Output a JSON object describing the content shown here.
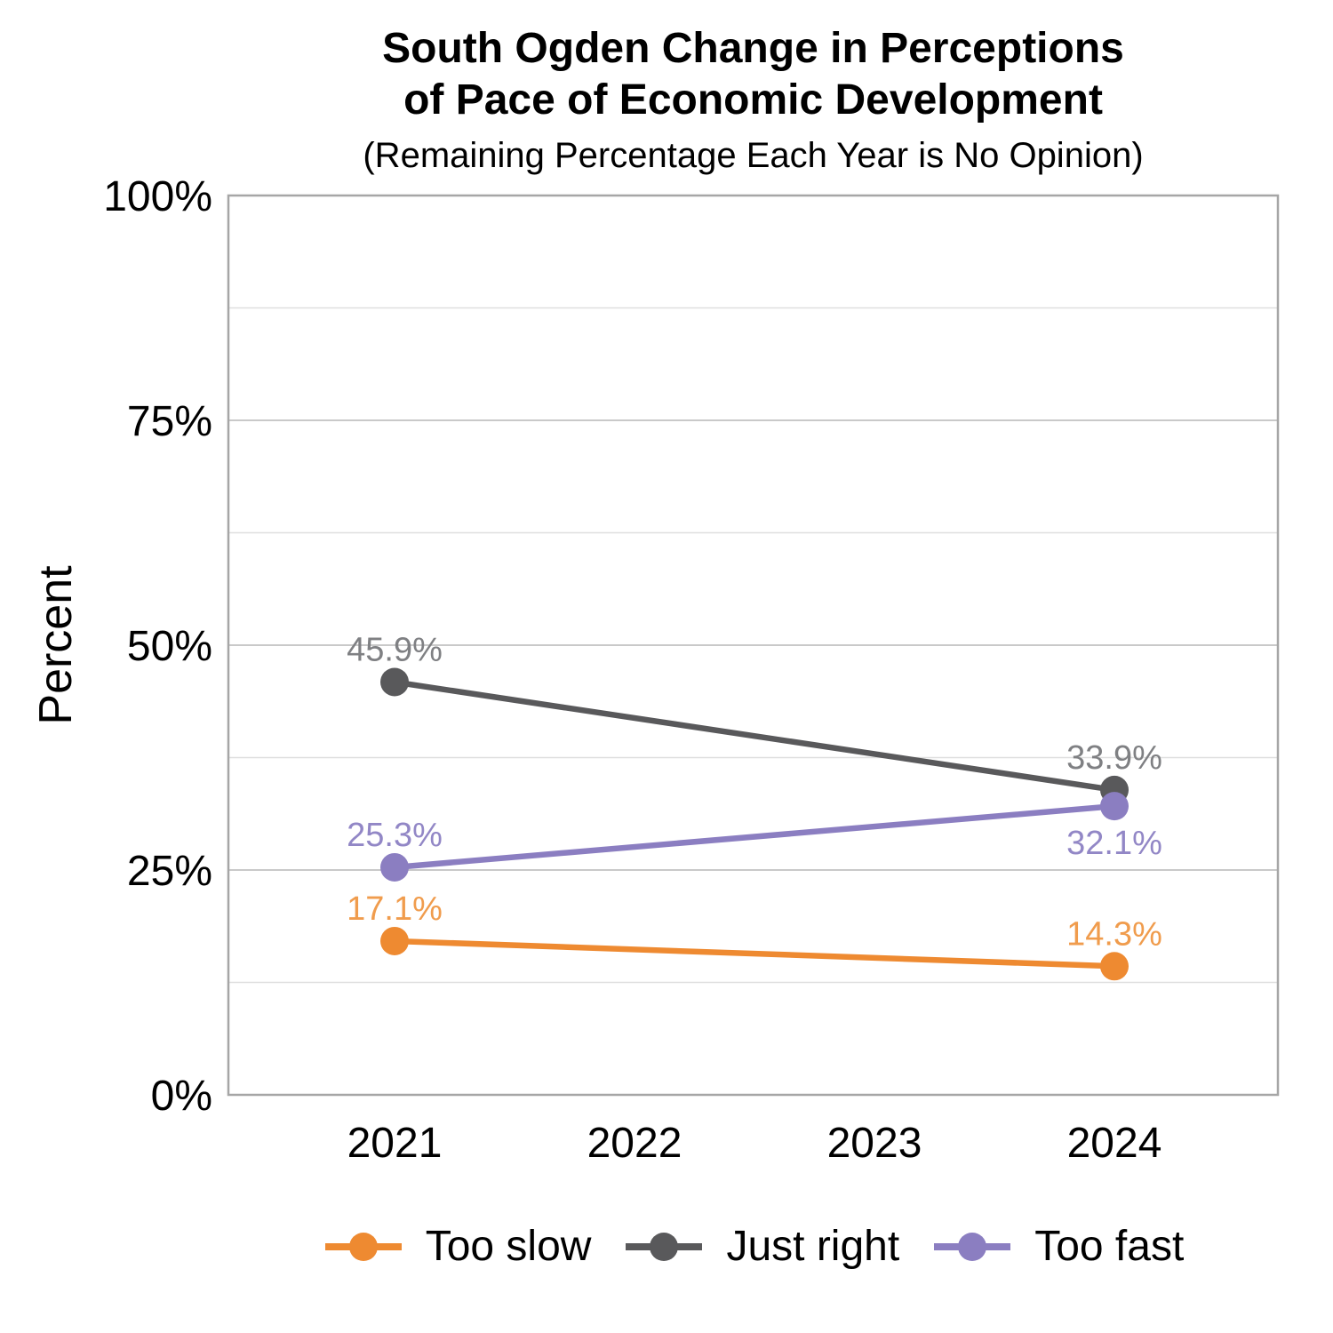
{
  "header": {
    "title_line1": "South Ogden Change in Perceptions",
    "title_line2": "of Pace of Economic Development",
    "subtitle": "(Remaining Percentage Each Year is No Opinion)"
  },
  "chart_data": {
    "type": "line",
    "title": "South Ogden Change in Perceptions of Pace of Economic Development",
    "subtitle": "(Remaining Percentage Each Year is No Opinion)",
    "ylabel": "Percent",
    "xlabel": "",
    "ylim": [
      0,
      100
    ],
    "yticks": [
      {
        "value": 0,
        "label": "0%"
      },
      {
        "value": 25,
        "label": "25%"
      },
      {
        "value": 50,
        "label": "50%"
      },
      {
        "value": 75,
        "label": "75%"
      },
      {
        "value": 100,
        "label": "100%"
      }
    ],
    "minor_gridlines": [
      12.5,
      37.5,
      62.5,
      87.5
    ],
    "categories": [
      "2021",
      "2022",
      "2023",
      "2024"
    ],
    "grid": true,
    "legend_position": "bottom",
    "colors": {
      "panel_border": "#A6A6A6",
      "grid_major": "#C9C9C9",
      "grid_minor": "#DFDFDF",
      "tick_text": "#000000"
    },
    "series": [
      {
        "name": "Too slow",
        "color": "#EE8A31",
        "label_color": "#F09C4D",
        "points": [
          {
            "x": "2021",
            "y": 17.1,
            "label": "17.1%",
            "label_side": "above"
          },
          {
            "x": "2024",
            "y": 14.3,
            "label": "14.3%",
            "label_side": "above"
          }
        ]
      },
      {
        "name": "Just right",
        "color": "#59595B",
        "label_color": "#7F8083",
        "points": [
          {
            "x": "2021",
            "y": 45.9,
            "label": "45.9%",
            "label_side": "above"
          },
          {
            "x": "2024",
            "y": 33.9,
            "label": "33.9%",
            "label_side": "above"
          }
        ]
      },
      {
        "name": "Too fast",
        "color": "#8B7EC1",
        "label_color": "#9287C6",
        "points": [
          {
            "x": "2021",
            "y": 25.3,
            "label": "25.3%",
            "label_side": "above"
          },
          {
            "x": "2024",
            "y": 32.1,
            "label": "32.1%",
            "label_side": "below"
          }
        ]
      }
    ]
  }
}
